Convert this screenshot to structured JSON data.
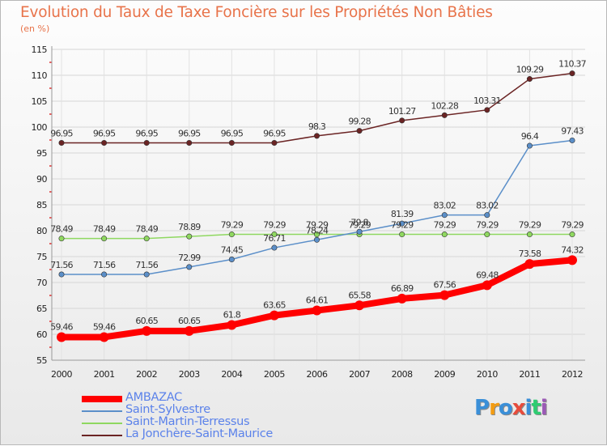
{
  "header": {
    "title": "Evolution du Taux de Taxe Foncière sur les Propriétés Non Bâties",
    "unit": "(en %)"
  },
  "logo": {
    "text": "Proxiti",
    "colors": [
      "#3a8fd8",
      "#f39c12",
      "#3a8fd8",
      "#e74c3c",
      "#3a8fd8",
      "#2ecc71",
      "#9b59b6"
    ]
  },
  "chart_data": {
    "type": "line",
    "title": "Evolution du Taux de Taxe Foncière sur les Propriétés Non Bâties",
    "ylabel": "(en %)",
    "xlabel": "",
    "x": [
      "2000",
      "2001",
      "2002",
      "2003",
      "2004",
      "2005",
      "2006",
      "2007",
      "2008",
      "2009",
      "2010",
      "2011",
      "2012"
    ],
    "ylim": [
      55,
      115
    ],
    "yticks": [
      "55",
      "60",
      "65",
      "70",
      "75",
      "80",
      "85",
      "90",
      "95",
      "100",
      "105",
      "110",
      "115"
    ],
    "grid": true,
    "legend_position": "bottom-left",
    "series": [
      {
        "name": "AMBAZAC",
        "color": "#ff0000",
        "values": [
          59.46,
          59.46,
          60.65,
          60.65,
          61.8,
          63.65,
          64.61,
          65.58,
          66.89,
          67.56,
          69.48,
          73.58,
          74.32
        ],
        "labels": [
          "59.46",
          "59.46",
          "60.65",
          "60.65",
          "61.8",
          "63.65",
          "64.61",
          "65.58",
          "66.89",
          "67.56",
          "69.48",
          "73.58",
          "74.32"
        ]
      },
      {
        "name": "Saint-Sylvestre",
        "color": "#5b8fc9",
        "values": [
          71.56,
          71.56,
          71.56,
          72.99,
          74.45,
          76.71,
          78.24,
          79.8,
          81.39,
          83.02,
          83.02,
          96.4,
          97.43
        ],
        "labels": [
          "71.56",
          "71.56",
          "71.56",
          "72.99",
          "74.45",
          "76.71",
          "78.24",
          "79.8",
          "81.39",
          "83.02",
          "83.02",
          "96.4",
          "97.43"
        ]
      },
      {
        "name": "Saint-Martin-Terressus",
        "color": "#8fd860",
        "values": [
          78.49,
          78.49,
          78.49,
          78.89,
          79.29,
          79.29,
          79.29,
          79.29,
          79.29,
          79.29,
          79.29,
          79.29,
          79.29
        ],
        "labels": [
          "78.49",
          "78.49",
          "78.49",
          "78.89",
          "79.29",
          "79.29",
          "79.29",
          "79.29",
          "79.29",
          "79.29",
          "79.29",
          "79.29",
          "79.29"
        ]
      },
      {
        "name": "La Jonchère-Saint-Maurice",
        "color": "#6b2424",
        "values": [
          96.95,
          96.95,
          96.95,
          96.95,
          96.95,
          96.95,
          98.3,
          99.28,
          101.27,
          102.28,
          103.31,
          109.29,
          110.37
        ],
        "labels": [
          "96.95",
          "96.95",
          "96.95",
          "96.95",
          "96.95",
          "96.95",
          "98.3",
          "99.28",
          "101.27",
          "102.28",
          "103.31",
          "109.29",
          "110.37"
        ]
      }
    ]
  }
}
